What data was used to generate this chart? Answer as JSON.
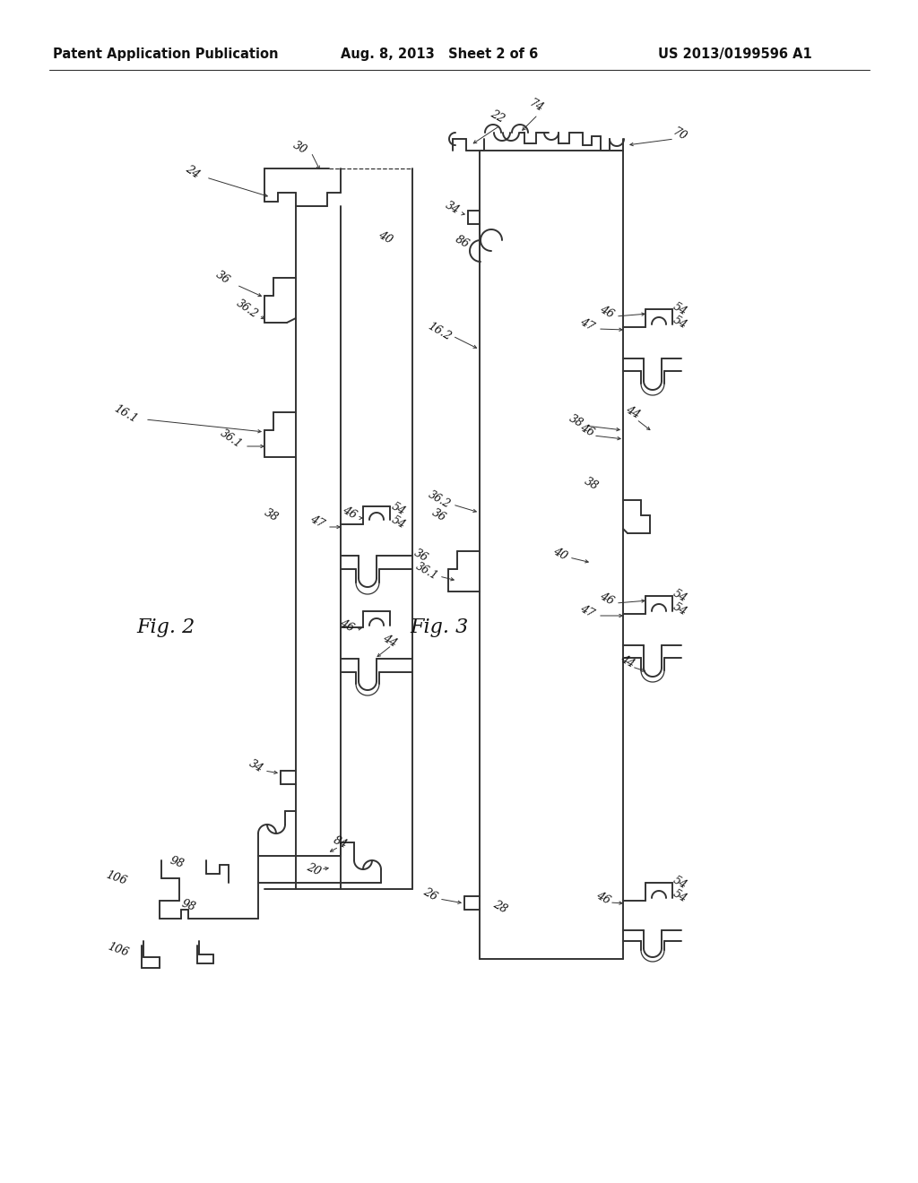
{
  "bg_color": "#ffffff",
  "header_left": "Patent Application Publication",
  "header_mid": "Aug. 8, 2013   Sheet 2 of 6",
  "header_right": "US 2013/0199596 A1",
  "fig2_label": "Fig. 2",
  "fig3_label": "Fig. 3",
  "line_color": "#333333",
  "text_color": "#111111",
  "lw": 1.4,
  "lw_thin": 0.9
}
